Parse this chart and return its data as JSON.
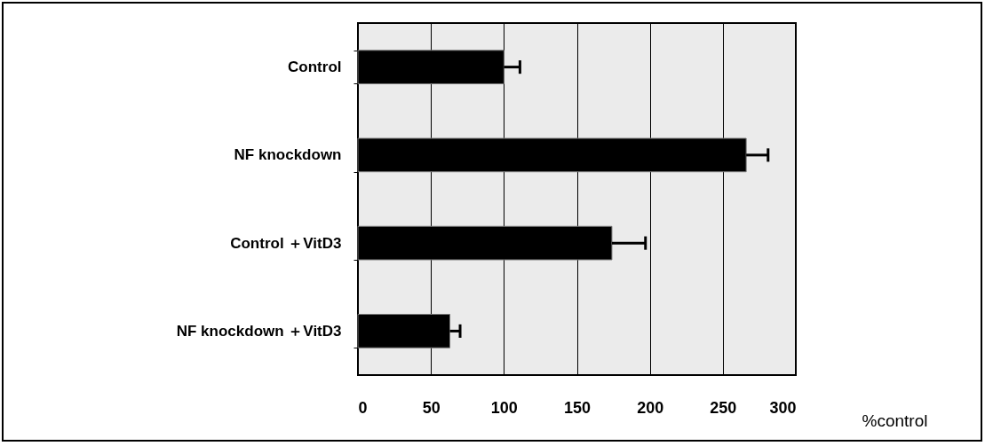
{
  "chart_data": {
    "type": "bar",
    "orientation": "horizontal",
    "categories": [
      "Control",
      "NF knockdown",
      "Control ＋VitD3",
      "NF knockdown ＋VitD3"
    ],
    "values": [
      100,
      266,
      174,
      63
    ],
    "errors": [
      [
        100,
        111
      ],
      [
        266,
        281
      ],
      [
        174,
        197
      ],
      [
        63,
        70
      ]
    ],
    "color": "#000000",
    "xlabel": "%control",
    "xlim": [
      0,
      300
    ],
    "xticks": [
      0,
      50,
      100,
      150,
      200,
      250,
      300
    ],
    "grid": "x"
  }
}
